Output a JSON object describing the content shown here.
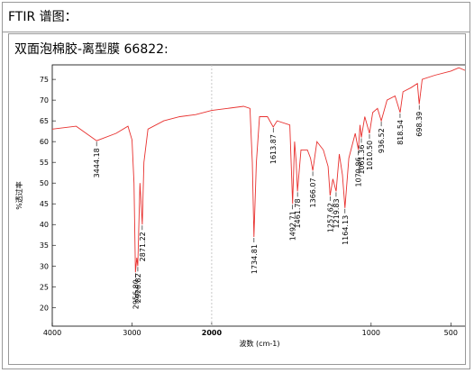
{
  "header": "FTIR 谱图：",
  "chart_data": {
    "type": "line",
    "title": "双面泡棉胶-离型膜 66822:",
    "xlabel": "波数 (cm-1)",
    "ylabel": "%透过率",
    "x": [
      4000,
      3700,
      3444.18,
      3200,
      3050,
      3000,
      2975,
      2956.8,
      2940,
      2926.82,
      2900,
      2871.22,
      2850,
      2800,
      2600,
      2400,
      2200,
      2000,
      1900,
      1800,
      1760,
      1745,
      1734.81,
      1720,
      1700,
      1650,
      1613.87,
      1590,
      1510,
      1492.71,
      1480,
      1470,
      1461.78,
      1440,
      1400,
      1380,
      1366.07,
      1340,
      1300,
      1270,
      1257.62,
      1240,
      1219.83,
      1200,
      1180,
      1164.13,
      1140,
      1100,
      1079.86,
      1070,
      1061.36,
      1040,
      1010.5,
      990,
      960,
      936.52,
      900,
      850,
      818.54,
      800,
      750,
      710,
      698.39,
      680,
      600,
      500,
      450,
      400
    ],
    "series": [
      {
        "color": "#e8312f",
        "values": [
          63.0,
          63.7,
          60.2,
          62.0,
          63.7,
          60.4,
          50,
          28.5,
          32,
          30,
          50,
          40,
          55,
          63,
          65,
          66,
          66.5,
          67.5,
          68,
          68.5,
          68,
          55,
          37,
          55,
          66,
          66,
          63.5,
          65,
          64,
          45,
          60,
          55,
          48,
          58,
          58,
          56,
          53,
          60,
          58,
          54,
          47,
          51,
          48,
          57,
          52,
          44,
          56,
          62,
          58,
          64,
          61,
          66,
          62,
          67,
          68,
          65,
          70,
          71,
          67,
          72,
          73,
          74,
          69,
          75,
          76,
          77,
          77.8,
          77
        ]
      }
    ],
    "peaks": {
      "x": [
        3444.18,
        2956.8,
        2926.82,
        2871.22,
        1734.81,
        1613.87,
        1492.71,
        1461.78,
        1366.07,
        1257.62,
        1219.83,
        1164.13,
        1079.86,
        1061.36,
        1010.5,
        936.52,
        818.54,
        698.39
      ],
      "labels": [
        "3444.18",
        "2956.80",
        "2926.82",
        "2871.22",
        "1734.81",
        "1613.87",
        "1492.71",
        "1461.78",
        "1366.07",
        "1257.62",
        "1219.83",
        "1164.13",
        "1079.86",
        "1061.36",
        "1010.50",
        "936.52",
        "818.54",
        "698.39"
      ]
    },
    "xlim": [
      4000,
      400
    ],
    "xbreak": 2000,
    "xticks": [
      4000,
      3000,
      2000,
      1000,
      500
    ],
    "ylim": [
      15.5,
      78.5
    ],
    "yticks": [
      20,
      25,
      30,
      35,
      40,
      45,
      50,
      55,
      60,
      65,
      70,
      75
    ]
  }
}
